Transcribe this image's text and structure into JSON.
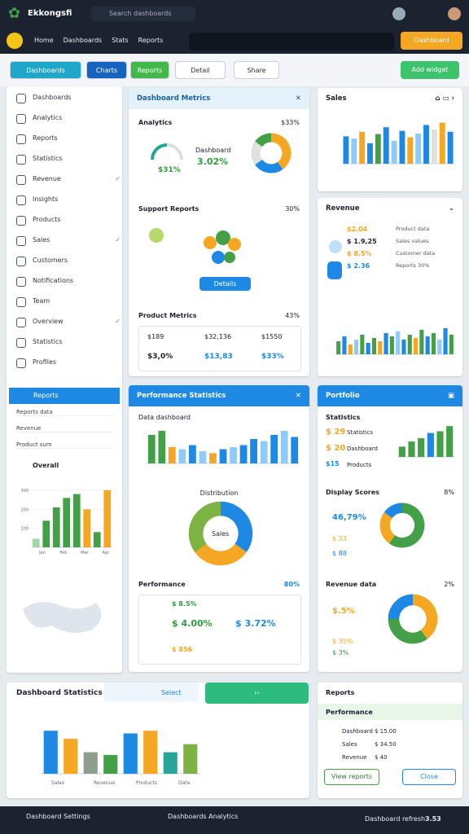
{
  "header": {
    "app_name": "Ekkongsfi",
    "search": "Search dashboards",
    "nav": [
      "Home",
      "Dashboards",
      "Stats",
      "Reports"
    ],
    "action": "Dashboard"
  },
  "toolbar": {
    "buttons": [
      "Dashboards",
      "Charts",
      "Reports",
      "Detail",
      "Share"
    ],
    "right": "Add widget"
  },
  "sidebar": {
    "items": [
      "Dashboards",
      "Analytics",
      "Reports",
      "Statistics",
      "Revenue",
      "Insights",
      "Products",
      "Sales",
      "Customers",
      "Notifications",
      "Team",
      "Overview",
      "Statistics",
      "Profiles"
    ],
    "active": "Reports",
    "subitems": [
      "Reports data",
      "Revenue",
      "Product sum"
    ],
    "overall": "Overall",
    "chart": {
      "ylim": [
        0,
        300
      ],
      "yticks": [
        100,
        200,
        300
      ],
      "values": [
        45,
        140,
        210,
        260,
        280,
        200,
        80,
        300
      ],
      "colors": [
        "#a5d6a7",
        "#43a047",
        "#43a047",
        "#43a047",
        "#43a047",
        "#f5a623",
        "#43a047",
        "#f5a623"
      ],
      "categories": [
        "Jan",
        "Feb",
        "Mar",
        "Apr"
      ]
    }
  },
  "panel1": {
    "title": "Dashboard Metrics",
    "analytics": "Analytics",
    "analytics_pct": "$33%",
    "gauge_label": "Dashboard",
    "gauge_value": "3.02%",
    "gauge_sub": "$31%",
    "donut": {
      "values": [
        40,
        25,
        20,
        15
      ],
      "colors": [
        "#f5a623",
        "#1e88e5",
        "#e0e0e0",
        "#43a047"
      ]
    },
    "support": "Support Reports",
    "support_pct": "30%",
    "button": "Details",
    "product": "Product Metrics",
    "product_pct": "43%",
    "table": [
      [
        "$189",
        "$32,136",
        "$1550"
      ],
      [
        "$3,0%",
        "$13,83",
        "$33%"
      ]
    ]
  },
  "panel2": {
    "title": "Performance Statistics",
    "subtitle": "Data dashboard",
    "bars": {
      "ylim": [
        0,
        100
      ],
      "values": [
        70,
        80,
        40,
        35,
        45,
        30,
        25,
        35,
        40,
        45,
        60,
        55,
        70,
        80,
        65
      ],
      "colors": [
        "#43a047",
        "#43a047",
        "#f5a623",
        "#90caf9",
        "#1e88e5",
        "#90caf9",
        "#f5a623",
        "#1e88e5",
        "#90caf9",
        "#1e88e5",
        "#1e88e5",
        "#90caf9",
        "#1e88e5",
        "#90caf9",
        "#1e88e5"
      ]
    },
    "distribution": "Distribution",
    "donut": {
      "values": [
        35,
        30,
        35
      ],
      "colors": [
        "#1e88e5",
        "#f5a623",
        "#7cb342"
      ]
    },
    "donut_label": "Sales",
    "performance": "Performance",
    "performance_pct": "80%",
    "rows": [
      "$ 8.5%",
      "$ 4.00%",
      "$ 3.72%",
      "$ 856"
    ]
  },
  "panelA": {
    "title": "Sales",
    "bars": {
      "ylim": [
        0,
        100
      ],
      "values": [
        60,
        55,
        70,
        45,
        65,
        80,
        50,
        72,
        58,
        66,
        85,
        75,
        90,
        70
      ],
      "colors": [
        "#1e88e5",
        "#90caf9",
        "#f5a623",
        "#1e88e5",
        "#43a047",
        "#1e88e5",
        "#90caf9",
        "#1e88e5",
        "#f5a623",
        "#90caf9",
        "#1e88e5",
        "#e0e0e0",
        "#f5a623",
        "#1e88e5"
      ]
    }
  },
  "panelB": {
    "title": "Revenue",
    "rows": [
      "$2.04",
      "$ 1.9,25",
      "$ 8.5%",
      "$ 2.36"
    ],
    "legend": [
      "Product data",
      "Sales values",
      "Customer data",
      "Reports 30%"
    ],
    "bars": {
      "ylim": [
        0,
        100
      ],
      "values": [
        40,
        55,
        30,
        45,
        60,
        35,
        50,
        40,
        65,
        55,
        70,
        45,
        60,
        50,
        75,
        55,
        65,
        45,
        80,
        60
      ],
      "colors": [
        "#43a047",
        "#1e88e5",
        "#f5a623",
        "#90caf9",
        "#43a047",
        "#1e88e5",
        "#43a047",
        "#f5a623",
        "#1e88e5",
        "#43a047",
        "#90caf9",
        "#1e88e5",
        "#43a047",
        "#f5a623",
        "#43a047",
        "#1e88e5",
        "#43a047",
        "#90caf9",
        "#1e88e5",
        "#43a047"
      ]
    }
  },
  "panelC": {
    "title": "Portfolio",
    "statistics": "Statistics",
    "rows": [
      "$ 29",
      "$ 20",
      "$15"
    ],
    "row_labels": [
      "Statistics",
      "Dashboard",
      "Products"
    ],
    "bars": {
      "ylim": [
        0,
        100
      ],
      "values": [
        30,
        45,
        55,
        70,
        75,
        90
      ],
      "colors": [
        "#43a047",
        "#43a047",
        "#43a047",
        "#1e88e5",
        "#43a047",
        "#43a047"
      ]
    },
    "scores": "Display Scores",
    "scores_pct": "8%",
    "score_value": "46,79%",
    "score_rows": [
      "$ 33",
      "$ 88"
    ],
    "donut1": {
      "values": [
        60,
        25,
        15
      ],
      "colors": [
        "#43a047",
        "#f5a623",
        "#1e88e5"
      ]
    },
    "revenue": "Revenue data",
    "revenue_pct": "2%",
    "revenue_value": "$.5%",
    "revenue_rows": [
      "$ 35%",
      "$ 3%"
    ],
    "donut2": {
      "values": [
        40,
        35,
        25
      ],
      "colors": [
        "#f5a623",
        "#43a047",
        "#1e88e5"
      ]
    }
  },
  "bottom": {
    "title": "Dashboard Statistics",
    "select": "Select",
    "bars": {
      "ylim": [
        0,
        100
      ],
      "values": [
        80,
        65,
        40,
        35,
        75,
        80,
        40,
        55
      ],
      "colors": [
        "#1e88e5",
        "#f5a623",
        "#8d9e8f",
        "#43a047",
        "#1e88e5",
        "#f5a623",
        "#26a69a",
        "#7cb342"
      ]
    },
    "categories": [
      "Sales",
      "Revenue",
      "Products",
      "Data"
    ]
  },
  "reports": {
    "title": "Reports",
    "header": "Performance",
    "rows": [
      [
        "Dashboard",
        "$ 15.00"
      ],
      [
        "Sales",
        "$ 34.50"
      ],
      [
        "Revenue",
        "$ 40"
      ]
    ],
    "buttons": [
      "View reports",
      "Close"
    ]
  },
  "footer": {
    "left": "Dashboard Settings",
    "center": "Dashboards Analytics",
    "right": "Dashboard refresh",
    "value": "3.53"
  }
}
